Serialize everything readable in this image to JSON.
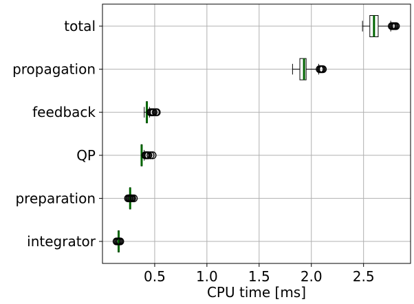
{
  "chart_data": {
    "type": "boxplot",
    "orientation": "horizontal",
    "title": "",
    "xlabel": "CPU time [ms]",
    "ylabel": "",
    "xlim": [
      0,
      2.95
    ],
    "x_ticks": [
      {
        "value": 0.5,
        "label": "0.5"
      },
      {
        "value": 1.0,
        "label": "1.0"
      },
      {
        "value": 1.5,
        "label": "1.5"
      },
      {
        "value": 2.0,
        "label": "2.0"
      },
      {
        "value": 2.5,
        "label": "2.5"
      }
    ],
    "grid": true,
    "categories": [
      "integrator",
      "preparation",
      "QP",
      "feedback",
      "propagation",
      "total"
    ],
    "boxes": [
      {
        "category": "integrator",
        "whislo": 0.15,
        "q1": 0.15,
        "med": 0.155,
        "q3": 0.16,
        "whishi": 0.16,
        "fliers": [
          0.135,
          0.145,
          0.155,
          0.165,
          0.17
        ]
      },
      {
        "category": "preparation",
        "whislo": 0.26,
        "q1": 0.26,
        "med": 0.265,
        "q3": 0.27,
        "whishi": 0.27,
        "fliers": [
          0.245,
          0.255,
          0.265,
          0.275,
          0.285,
          0.3
        ]
      },
      {
        "category": "QP",
        "whislo": 0.37,
        "q1": 0.37,
        "med": 0.375,
        "q3": 0.38,
        "whishi": 0.4,
        "fliers": [
          0.41,
          0.42,
          0.43,
          0.44,
          0.46,
          0.48
        ]
      },
      {
        "category": "feedback",
        "whislo": 0.4,
        "q1": 0.42,
        "med": 0.425,
        "q3": 0.43,
        "whishi": 0.45,
        "fliers": [
          0.46,
          0.47,
          0.48,
          0.49,
          0.51,
          0.52
        ]
      },
      {
        "category": "propagation",
        "whislo": 1.82,
        "q1": 1.89,
        "med": 1.93,
        "q3": 1.95,
        "whishi": 2.07,
        "fliers": [
          2.08,
          2.09,
          2.1,
          2.11
        ]
      },
      {
        "category": "total",
        "whislo": 2.49,
        "q1": 2.56,
        "med": 2.6,
        "q3": 2.64,
        "whishi": 2.76,
        "fliers": [
          2.77,
          2.78,
          2.79,
          2.8,
          2.81
        ]
      }
    ],
    "colors": {
      "box_edge": "#000000",
      "box_fill": "#ffffff",
      "median": "#006400",
      "whisker": "#000000",
      "flier": "#000000",
      "grid": "#b0b0b0",
      "axes": "#000000"
    }
  }
}
